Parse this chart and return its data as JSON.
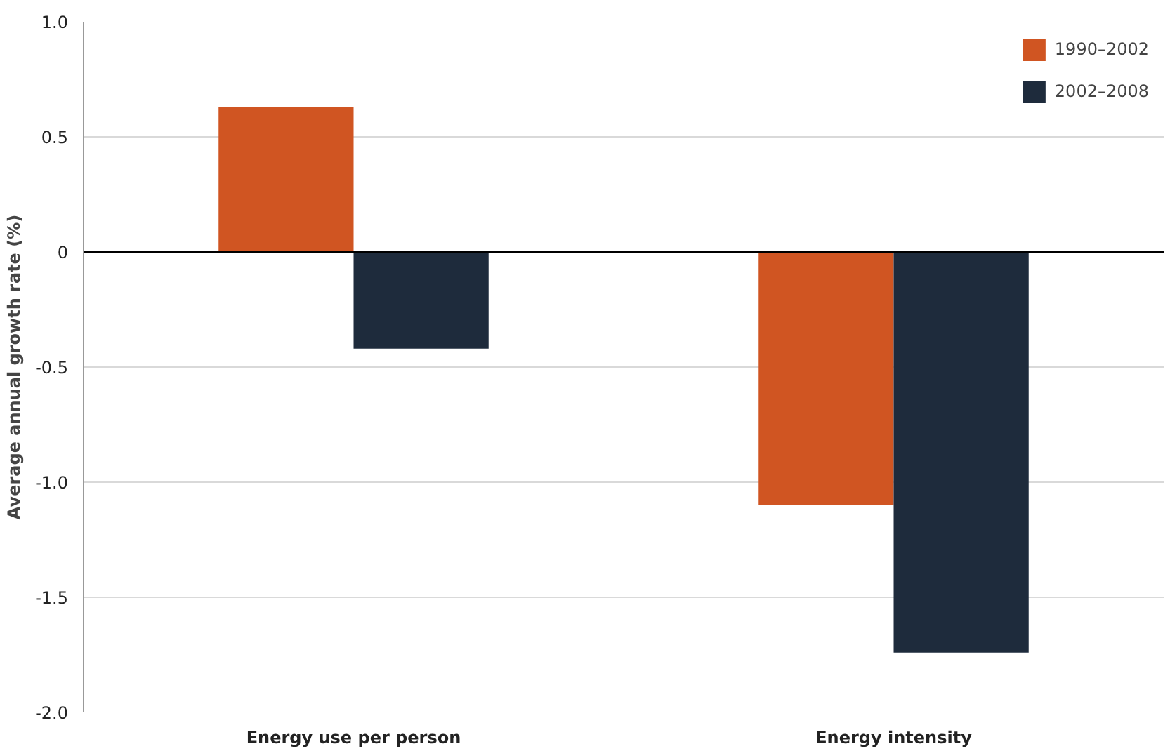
{
  "chart_data": {
    "type": "bar",
    "ylabel": "Average annual growth rate (%)",
    "categories": [
      "Energy use per person",
      "Energy intensity"
    ],
    "series": [
      {
        "name": "1990–2002",
        "color": "#d05522",
        "values": [
          0.63,
          -1.1
        ]
      },
      {
        "name": "2002–2008",
        "color": "#1e2b3c",
        "values": [
          -0.42,
          -1.74
        ]
      }
    ],
    "ylim": [
      -2.0,
      1.0
    ],
    "yticks": [
      {
        "value": -2.0,
        "label": "-2.0"
      },
      {
        "value": -1.5,
        "label": "-1.5"
      },
      {
        "value": -1.0,
        "label": "-1.0"
      },
      {
        "value": -0.5,
        "label": "-0.5"
      },
      0,
      {
        "value": 0.5,
        "label": "0.5"
      },
      {
        "value": 1.0,
        "label": "1.0"
      }
    ],
    "grid": "y",
    "legend": "top right"
  }
}
